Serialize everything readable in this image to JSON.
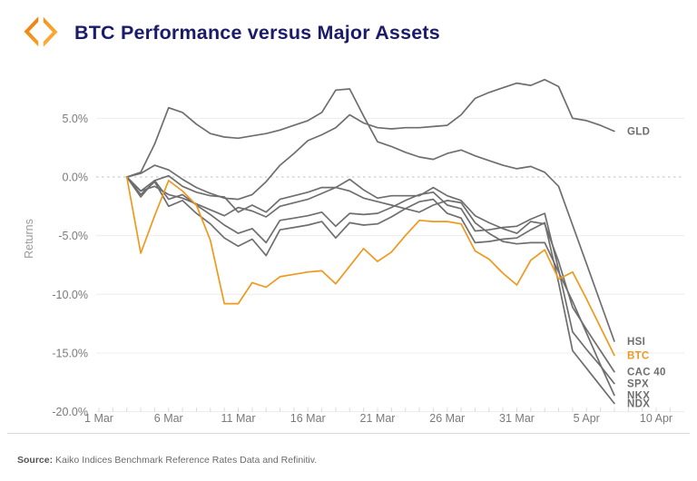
{
  "header": {
    "title": "BTC Performance versus Major Assets",
    "logo": "kaiko-logo",
    "title_color": "#1b1b6b"
  },
  "footer": {
    "source_label": "Source:",
    "source_text": " Kaiko Indices Benchmark Reference Rates Data and Refinitiv."
  },
  "colors": {
    "btc_orange": "#f0981e",
    "index_gray": "#6e6e6e",
    "gridline": "#ececec",
    "zero_line": "#c2c2c2",
    "tick_text": "#7a7a7a"
  },
  "chart_data": {
    "type": "line",
    "title": "BTC Performance versus Major Assets",
    "xlabel": "",
    "ylabel": "Returns",
    "grid": true,
    "zero_line_style": "dashed",
    "labels_at_line_end": true,
    "ylim": [
      -21.5,
      9
    ],
    "y_ticks": [
      {
        "value": 5,
        "label": "5.0%"
      },
      {
        "value": 0,
        "label": "0.0%"
      },
      {
        "value": -5,
        "label": "-5.0%"
      },
      {
        "value": -10,
        "label": "-10.0%"
      },
      {
        "value": -15,
        "label": "-15.0%"
      },
      {
        "value": -20,
        "label": "-20.0%"
      }
    ],
    "x_tick_labels": [
      "1 Mar",
      "6 Mar",
      "11 Mar",
      "16 Mar",
      "21 Mar",
      "26 Mar",
      "31 Mar",
      "5 Apr",
      "10 Apr"
    ],
    "x_axis_range_days": 41,
    "data_start_offset_days": 2,
    "dates": [
      "3 Mar",
      "4 Mar",
      "5 Mar",
      "6 Mar",
      "7 Mar",
      "8 Mar",
      "9 Mar",
      "10 Mar",
      "11 Mar",
      "12 Mar",
      "13 Mar",
      "14 Mar",
      "15 Mar",
      "16 Mar",
      "17 Mar",
      "18 Mar",
      "19 Mar",
      "20 Mar",
      "21 Mar",
      "22 Mar",
      "23 Mar",
      "24 Mar",
      "25 Mar",
      "26 Mar",
      "27 Mar",
      "28 Mar",
      "29 Mar",
      "30 Mar",
      "31 Mar",
      "1 Apr",
      "2 Apr",
      "3 Apr",
      "4 Apr",
      "5 Apr",
      "6 Apr",
      "7 Apr"
    ],
    "series": [
      {
        "name": "GLD",
        "color": "#6e6e6e",
        "highlight": false,
        "values": [
          0,
          0.3,
          1.0,
          0.6,
          -0.2,
          -0.9,
          -1.4,
          -1.8,
          -1.9,
          -1.5,
          -0.4,
          1.0,
          2.0,
          3.1,
          3.6,
          4.2,
          5.3,
          4.6,
          4.2,
          4.1,
          4.2,
          4.2,
          4.3,
          4.4,
          5.3,
          6.7,
          7.2,
          7.6,
          8.0,
          7.8,
          8.3,
          7.7,
          5.0,
          4.8,
          4.4,
          3.9
        ]
      },
      {
        "name": "HSI",
        "color": "#6e6e6e",
        "highlight": false,
        "values": [
          0,
          0.4,
          2.8,
          5.9,
          5.5,
          4.5,
          3.7,
          3.4,
          3.3,
          3.5,
          3.7,
          4.0,
          4.4,
          4.8,
          5.5,
          7.4,
          7.5,
          5.2,
          3.0,
          2.6,
          2.1,
          1.7,
          1.5,
          2.0,
          2.3,
          1.8,
          1.4,
          1.0,
          0.7,
          0.9,
          0.4,
          -0.8,
          -4.1,
          -7.4,
          -10.7,
          -14.0
        ]
      },
      {
        "name": "CAC 40",
        "color": "#6e6e6e",
        "highlight": false,
        "values": [
          0,
          -1.7,
          -0.3,
          0.1,
          -0.8,
          -1.3,
          -1.6,
          -1.7,
          -3.0,
          -2.4,
          -3.0,
          -1.9,
          -1.6,
          -1.3,
          -0.9,
          -0.9,
          -0.2,
          -1.1,
          -1.8,
          -1.6,
          -1.6,
          -1.6,
          -0.9,
          -1.6,
          -2.0,
          -3.3,
          -3.9,
          -4.4,
          -4.8,
          -3.8,
          -4.0,
          -7.2,
          -11.1,
          -13.0,
          -14.8,
          -16.6
        ]
      },
      {
        "name": "SPX",
        "color": "#6e6e6e",
        "highlight": false,
        "values": [
          0,
          -1.2,
          -0.3,
          -1.9,
          -1.5,
          -2.4,
          -3.2,
          -4.1,
          -4.8,
          -4.4,
          -5.6,
          -3.7,
          -3.5,
          -3.3,
          -3.0,
          -4.2,
          -3.1,
          -3.2,
          -3.1,
          -2.6,
          -2.0,
          -1.5,
          -1.3,
          -2.4,
          -2.7,
          -4.6,
          -4.5,
          -4.3,
          -4.2,
          -3.6,
          -3.1,
          -7.9,
          -13.2,
          -14.7,
          -16.1,
          -17.6
        ]
      },
      {
        "name": "NKX",
        "color": "#6e6e6e",
        "highlight": false,
        "values": [
          0,
          -1.2,
          -0.8,
          -1.5,
          -1.8,
          -2.3,
          -2.8,
          -3.3,
          -2.6,
          -2.9,
          -3.4,
          -2.5,
          -2.2,
          -1.9,
          -1.4,
          -0.9,
          -1.2,
          -1.8,
          -2.1,
          -2.4,
          -2.7,
          -3.0,
          -2.4,
          -2.0,
          -2.2,
          -3.9,
          -4.8,
          -5.5,
          -5.7,
          -5.6,
          -5.6,
          -8.1,
          -10.6,
          -13.3,
          -16.0,
          -18.6
        ]
      },
      {
        "name": "NDX",
        "color": "#6e6e6e",
        "highlight": false,
        "values": [
          0,
          -1.5,
          -0.4,
          -2.5,
          -2.0,
          -3.1,
          -4.0,
          -5.2,
          -5.9,
          -5.3,
          -6.7,
          -4.5,
          -4.3,
          -4.1,
          -3.8,
          -5.2,
          -3.9,
          -4.1,
          -4.0,
          -3.4,
          -2.7,
          -2.1,
          -1.9,
          -3.1,
          -3.5,
          -5.6,
          -5.5,
          -5.3,
          -5.2,
          -4.5,
          -3.9,
          -9.0,
          -14.8,
          -16.3,
          -17.8,
          -19.3
        ]
      },
      {
        "name": "BTC",
        "color": "#f0981e",
        "highlight": true,
        "values": [
          0,
          -6.5,
          -3.3,
          -0.3,
          -1.2,
          -2.4,
          -5.4,
          -10.8,
          -10.8,
          -9.0,
          -9.4,
          -8.5,
          -8.3,
          -8.1,
          -8.0,
          -9.1,
          -7.6,
          -6.1,
          -7.2,
          -6.4,
          -5.0,
          -3.7,
          -3.8,
          -3.8,
          -4.0,
          -6.3,
          -7.0,
          -8.2,
          -9.2,
          -7.1,
          -6.2,
          -8.7,
          -8.1,
          -10.4,
          -12.8,
          -15.2
        ]
      }
    ]
  }
}
